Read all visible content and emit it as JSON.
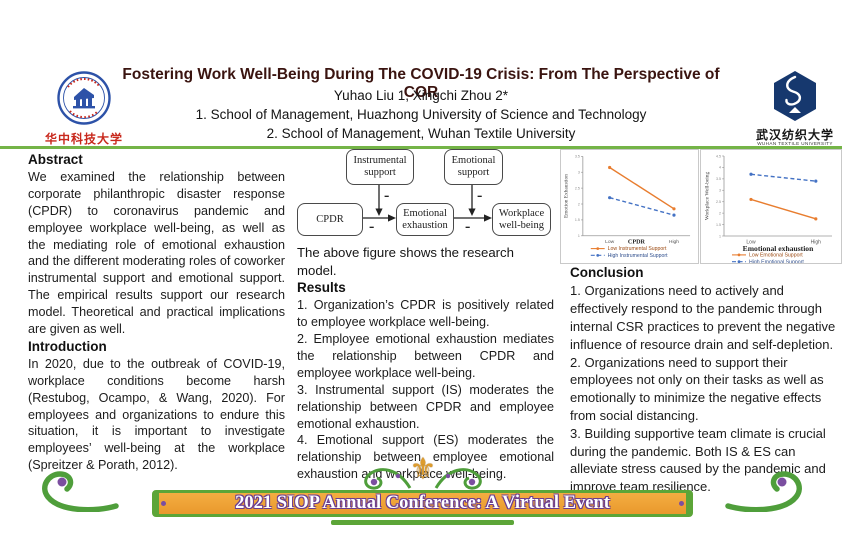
{
  "header": {
    "title": "Fostering Work Well-Being During The COVID-19 Crisis: From The Perspective of COR",
    "authors": "Yuhao Liu 1, Xingchi Zhou 2*",
    "affiliation1": "1. School of Management, Huazhong University of Science and Technology",
    "affiliation2": "2. School of Management, Wuhan Textile University",
    "logo_left": {
      "name_cjk": "华中科技大学"
    },
    "logo_right": {
      "name_cjk": "武汉纺织大学",
      "name_latin": "WUHAN TEXTILE UNIVERSITY"
    }
  },
  "abstract": {
    "heading": "Abstract",
    "body": "We examined the relationship between corporate philanthropic disaster response (CPDR) to coronavirus pandemic and employee workplace well-being, as well as the mediating role of emotional exhaustion and the different moderating roles of coworker instrumental support and emotional support. The empirical results support our research model. Theoretical and practical implications are given as well."
  },
  "introduction": {
    "heading": "Introduction",
    "body": "In 2020, due to the outbreak of COVID-19, workplace conditions become harsh (Restubog, Ocampo, & Wang, 2020). For employees and organizations to endure this situation, it is important to investigate employees’ well-being at the workplace (Spreitzer & Porath, 2012)."
  },
  "model": {
    "boxes": {
      "instrumental_support": "Instrumental support",
      "emotional_support": "Emotional support",
      "cpdr": "CPDR",
      "emotional_exhaustion": "Emotional exhaustion",
      "workplace_wellbeing": "Workplace well-being"
    },
    "minus_label": "-",
    "caption": "The above figure shows the research model."
  },
  "results": {
    "heading": "Results",
    "items": [
      "1. Organization’s CPDR is positively related to employee workplace well-being.",
      "2. Employee emotional exhaustion mediates the relationship between CPDR and employee workplace well-being.",
      "3. Instrumental support (IS) moderates the relationship between CPDR and employee emotional exhaustion.",
      "4. Emotional support (ES) moderates the relationship between employee emotional exhaustion and workplace well-being."
    ]
  },
  "conclusion": {
    "heading": "Conclusion",
    "items": [
      "1. Organizations need to actively and effectively respond to the pandemic through internal CSR practices to prevent the negative influence of resource drain and self-depletion.",
      "2. Organizations need to support their employees not only on their tasks as well as emotionally to minimize the negative effects from social distancing.",
      "3. Building supportive team climate is crucial during the pandemic. Both IS & ES can alleviate stress caused by the pandemic and improve team resilience."
    ]
  },
  "chart_data": [
    {
      "type": "line",
      "title": "",
      "xlabel": "CPDR",
      "ylabel": "Emotion Exhaustion",
      "x_ticks": [
        "Low",
        "High"
      ],
      "ylim": [
        1,
        3.5
      ],
      "yticks": [
        1,
        1.5,
        2,
        2.5,
        3,
        3.5
      ],
      "grid": false,
      "legend_position": "bottom",
      "xlabel_inline": true,
      "series": [
        {
          "name": "Low Instrumental Support",
          "values": [
            3.15,
            1.85
          ],
          "color": "#e87d2f",
          "style": "solid"
        },
        {
          "name": "High Instrumental Support",
          "values": [
            2.2,
            1.65
          ],
          "color": "#4472c4",
          "style": "dashed"
        }
      ]
    },
    {
      "type": "line",
      "title": "",
      "xlabel": "Emotional exhaustion",
      "ylabel": "Workplace Well-being",
      "x_ticks": [
        "Low",
        "High"
      ],
      "ylim": [
        1,
        4.5
      ],
      "yticks": [
        1,
        1.5,
        2,
        2.5,
        3,
        3.5,
        4,
        4.5
      ],
      "grid": false,
      "legend_position": "bottom",
      "xlabel_inline": false,
      "series": [
        {
          "name": "Low Emotional Support",
          "values": [
            2.6,
            1.75
          ],
          "color": "#e87d2f",
          "style": "solid"
        },
        {
          "name": "High Emotional Support",
          "values": [
            3.7,
            3.4
          ],
          "color": "#4472c4",
          "style": "dashed"
        }
      ]
    }
  ],
  "banner": {
    "text": "2021 SIOP Annual Conference: A Virtual Event",
    "fleur_icon": "⚜"
  },
  "colors": {
    "title_text": "#3a1410",
    "divider_green": "#74b447",
    "banner_orange": "#eea036",
    "banner_green": "#5ca538",
    "banner_purple": "#6a3d91",
    "series_orange": "#e87d2f",
    "series_blue": "#4472c4",
    "logo_red": "#c8281c",
    "logo_blue": "#2d52a8",
    "badge_navy": "#16386e"
  }
}
